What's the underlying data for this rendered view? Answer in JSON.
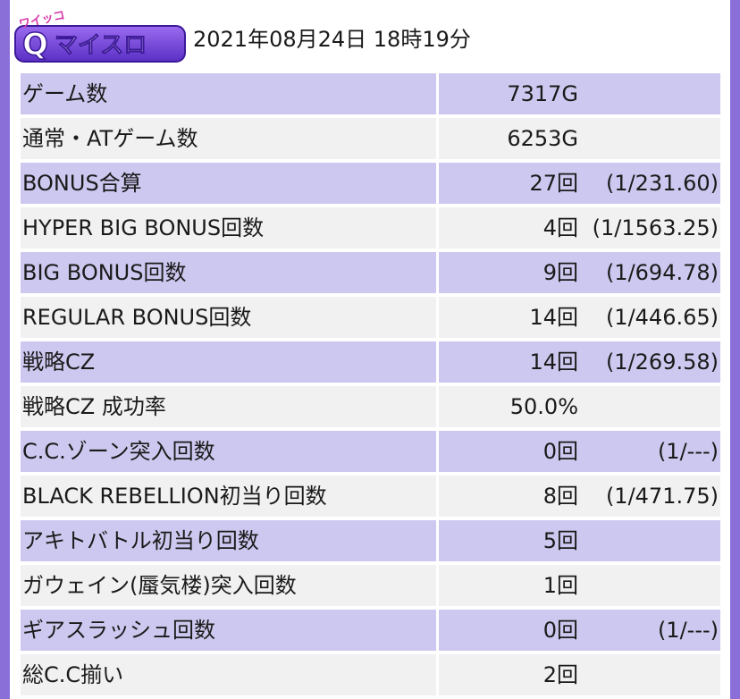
{
  "header": {
    "logo_text": "Qマイスロ",
    "logo_sub": "ワイッコ",
    "datetime": "2021年08月24日 18時19分"
  },
  "colors": {
    "frame": "#8a6fd9",
    "row_odd": "#cdc8ef",
    "row_even": "#f1f1f1",
    "logo_purple": "#6a3fd0"
  },
  "rows": [
    {
      "label": "ゲーム数",
      "value": "7317G",
      "ratio": ""
    },
    {
      "label": "通常・ATゲーム数",
      "value": "6253G",
      "ratio": ""
    },
    {
      "label": "BONUS合算",
      "value": "27回",
      "ratio": "(1/231.60)"
    },
    {
      "label": "HYPER BIG BONUS回数",
      "value": "4回",
      "ratio": "(1/1563.25)"
    },
    {
      "label": "BIG BONUS回数",
      "value": "9回",
      "ratio": "(1/694.78)"
    },
    {
      "label": "REGULAR BONUS回数",
      "value": "14回",
      "ratio": "(1/446.65)"
    },
    {
      "label": "戦略CZ",
      "value": "14回",
      "ratio": "(1/269.58)"
    },
    {
      "label": "戦略CZ 成功率",
      "value": "50.0%",
      "ratio": ""
    },
    {
      "label": "C.C.ゾーン突入回数",
      "value": "0回",
      "ratio": "(1/---)"
    },
    {
      "label": "BLACK REBELLION初当り回数",
      "value": "8回",
      "ratio": "(1/471.75)"
    },
    {
      "label": "アキトバトル初当り回数",
      "value": "5回",
      "ratio": ""
    },
    {
      "label": "ガウェイン(蜃気楼)突入回数",
      "value": "1回",
      "ratio": ""
    },
    {
      "label": "ギアスラッシュ回数",
      "value": "0回",
      "ratio": "(1/---)"
    },
    {
      "label": "総C.C揃い",
      "value": "2回",
      "ratio": ""
    }
  ]
}
